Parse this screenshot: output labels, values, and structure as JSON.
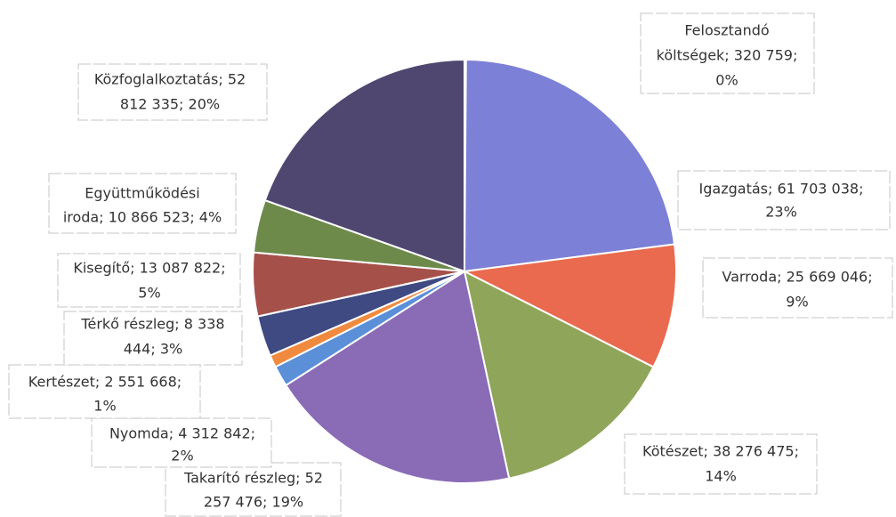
{
  "chart_data": {
    "type": "pie",
    "values": [
      320759,
      61703038,
      25669046,
      38276475,
      52257476,
      4312842,
      2551668,
      8338444,
      13087822,
      10866523,
      52812335
    ],
    "value_labels": [
      [
        "Felosztandó",
        "költségek; 320 759;",
        "0%"
      ],
      [
        "Igazgatás; 61 703 038;",
        "23%"
      ],
      [
        "Varroda; 25 669 046;",
        "9%"
      ],
      [
        "Kötészet; 38 276 475;",
        "14%"
      ],
      [
        "Takarító részleg; 52",
        "257 476; 19%"
      ],
      [
        "Nyomda; 4 312 842;",
        "2%"
      ],
      [
        "Kertészet; 2 551 668;",
        "1%"
      ],
      [
        "Térkő részleg; 8 338",
        "444; 3%"
      ],
      [
        "Kisegítő; 13 087 822;",
        "5%"
      ],
      [
        "Együttműködési",
        "iroda; 10 866 523; 4%"
      ],
      [
        "Közfoglalkoztatás; 52",
        "812 335; 20%"
      ]
    ],
    "colors": [
      "#4a66b0",
      "#7c80d6",
      "#e96a4f",
      "#8fa65a",
      "#8a6bb6",
      "#5b8fd8",
      "#f08a3e",
      "#3f4a82",
      "#a6504a",
      "#6e8a4b",
      "#4f4770"
    ]
  }
}
